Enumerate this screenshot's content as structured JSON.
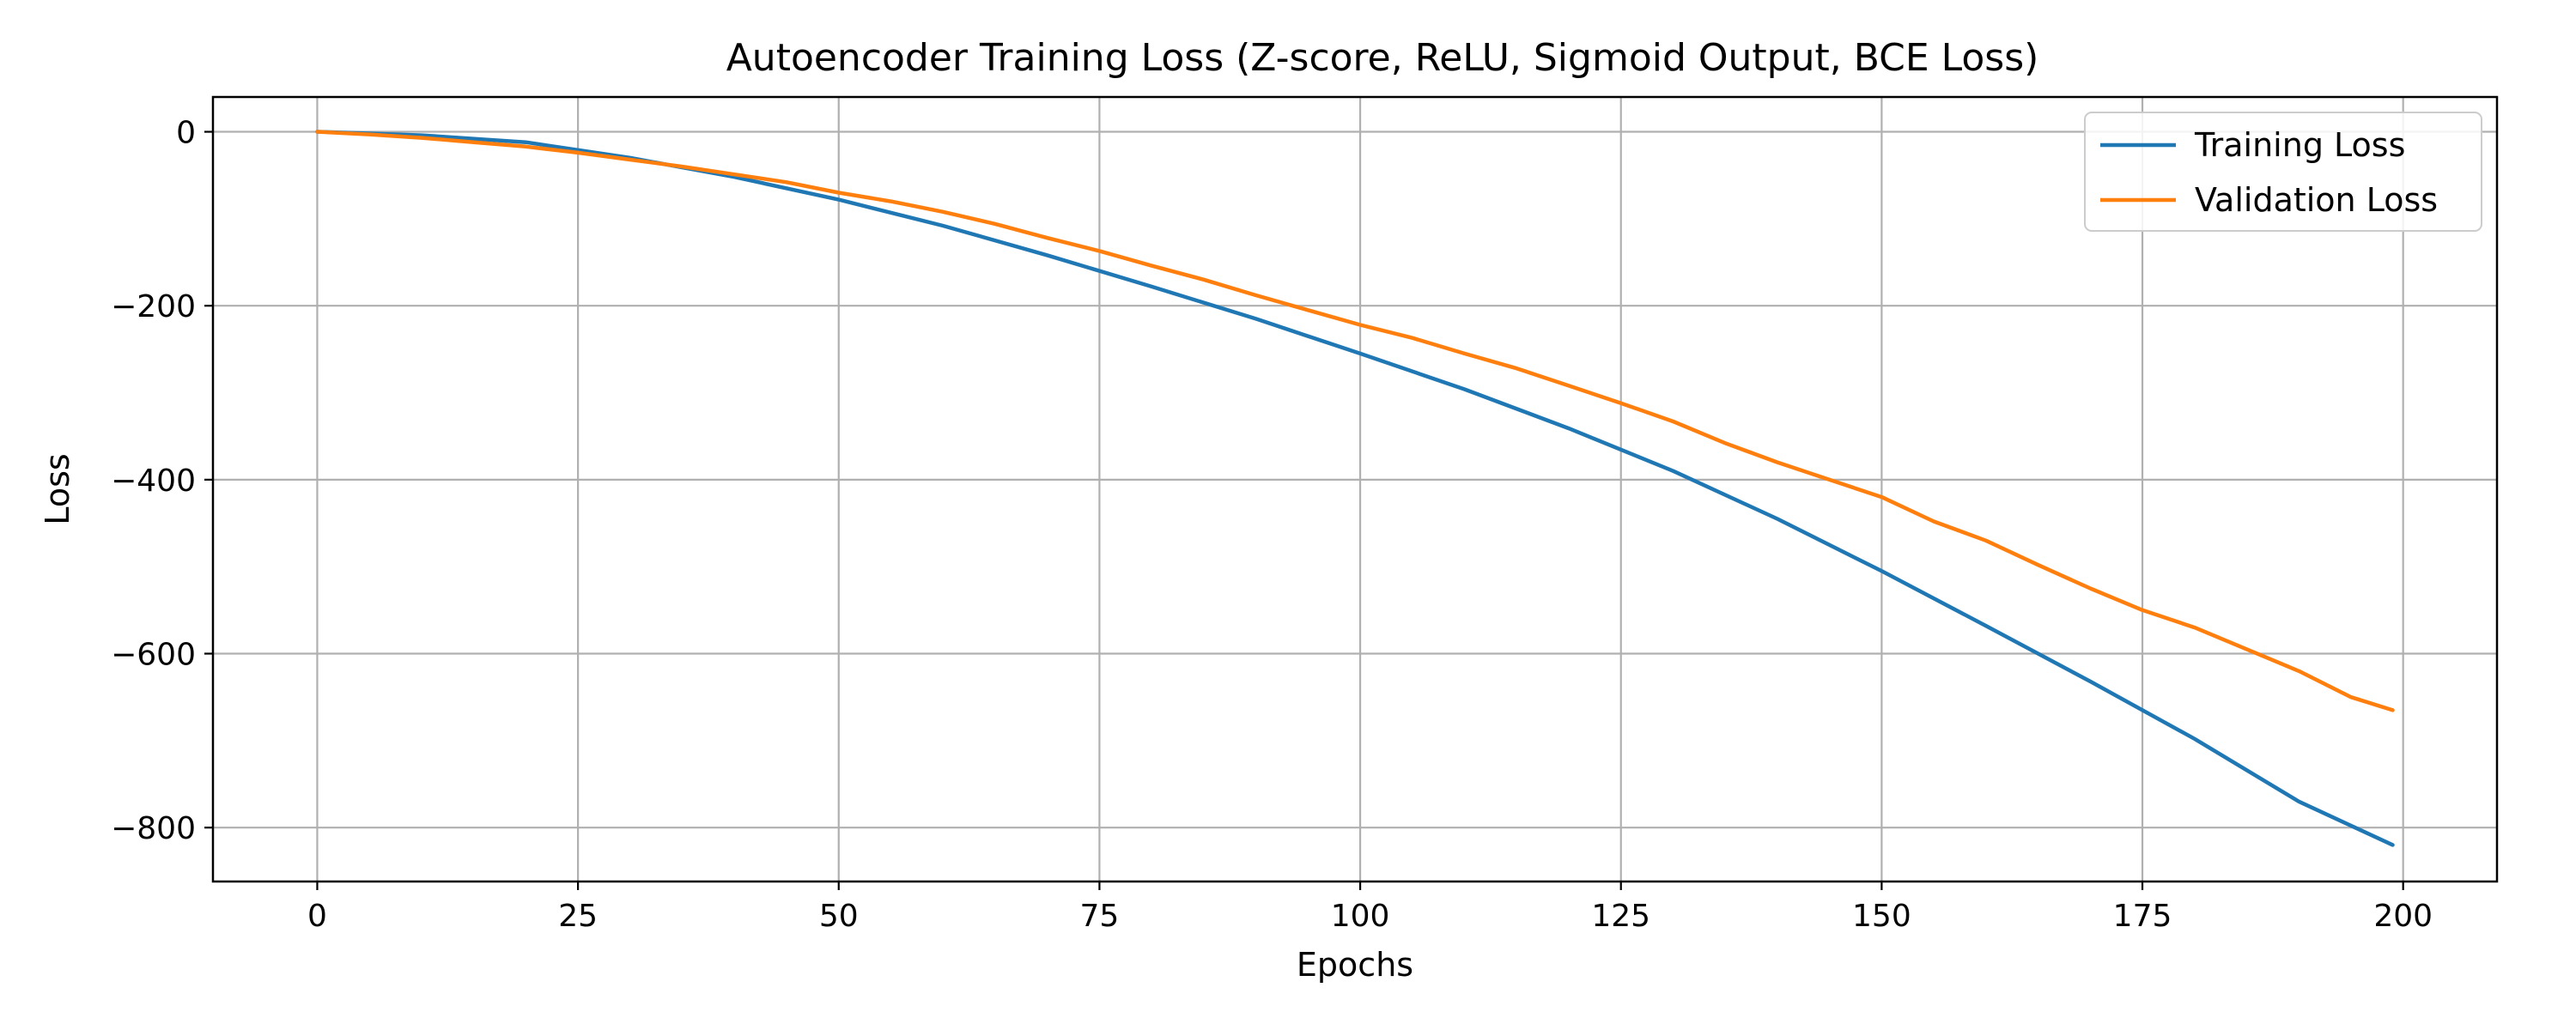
{
  "chart_data": {
    "type": "line",
    "title": "Autoencoder Training Loss (Z-score, ReLU, Sigmoid Output, BCE Loss)",
    "xlabel": "Epochs",
    "ylabel": "Loss",
    "xlim": [
      -10,
      209
    ],
    "ylim": [
      -862,
      40
    ],
    "xticks": [
      0,
      25,
      50,
      75,
      100,
      125,
      150,
      175,
      200
    ],
    "yticks": [
      0,
      -200,
      -400,
      -600,
      -800
    ],
    "grid": true,
    "legend_position": "top-right",
    "series": [
      {
        "name": "Training Loss",
        "color": "#1f77b4",
        "x": [
          0,
          10,
          20,
          30,
          40,
          50,
          60,
          70,
          80,
          90,
          100,
          110,
          120,
          130,
          140,
          150,
          160,
          170,
          180,
          190,
          199
        ],
        "y": [
          0,
          -4,
          -12,
          -30,
          -52,
          -78,
          -108,
          -142,
          -178,
          -215,
          -255,
          -296,
          -341,
          -390,
          -445,
          -505,
          -568,
          -632,
          -698,
          -770,
          -820
        ]
      },
      {
        "name": "Validation Loss",
        "color": "#ff7f0e",
        "x": [
          0,
          5,
          10,
          15,
          20,
          25,
          30,
          35,
          40,
          45,
          50,
          55,
          60,
          65,
          70,
          75,
          80,
          85,
          90,
          95,
          100,
          105,
          110,
          115,
          120,
          125,
          130,
          135,
          140,
          145,
          150,
          155,
          160,
          165,
          170,
          175,
          180,
          185,
          190,
          195,
          199
        ],
        "y": [
          0,
          -3,
          -7,
          -12,
          -17,
          -24,
          -32,
          -40,
          -49,
          -58,
          -70,
          -80,
          -92,
          -106,
          -122,
          -137,
          -154,
          -170,
          -188,
          -205,
          -222,
          -237,
          -255,
          -272,
          -292,
          -312,
          -333,
          -358,
          -380,
          -400,
          -420,
          -448,
          -470,
          -498,
          -525,
          -550,
          -570,
          -595,
          -620,
          -650,
          -665
        ]
      }
    ]
  }
}
